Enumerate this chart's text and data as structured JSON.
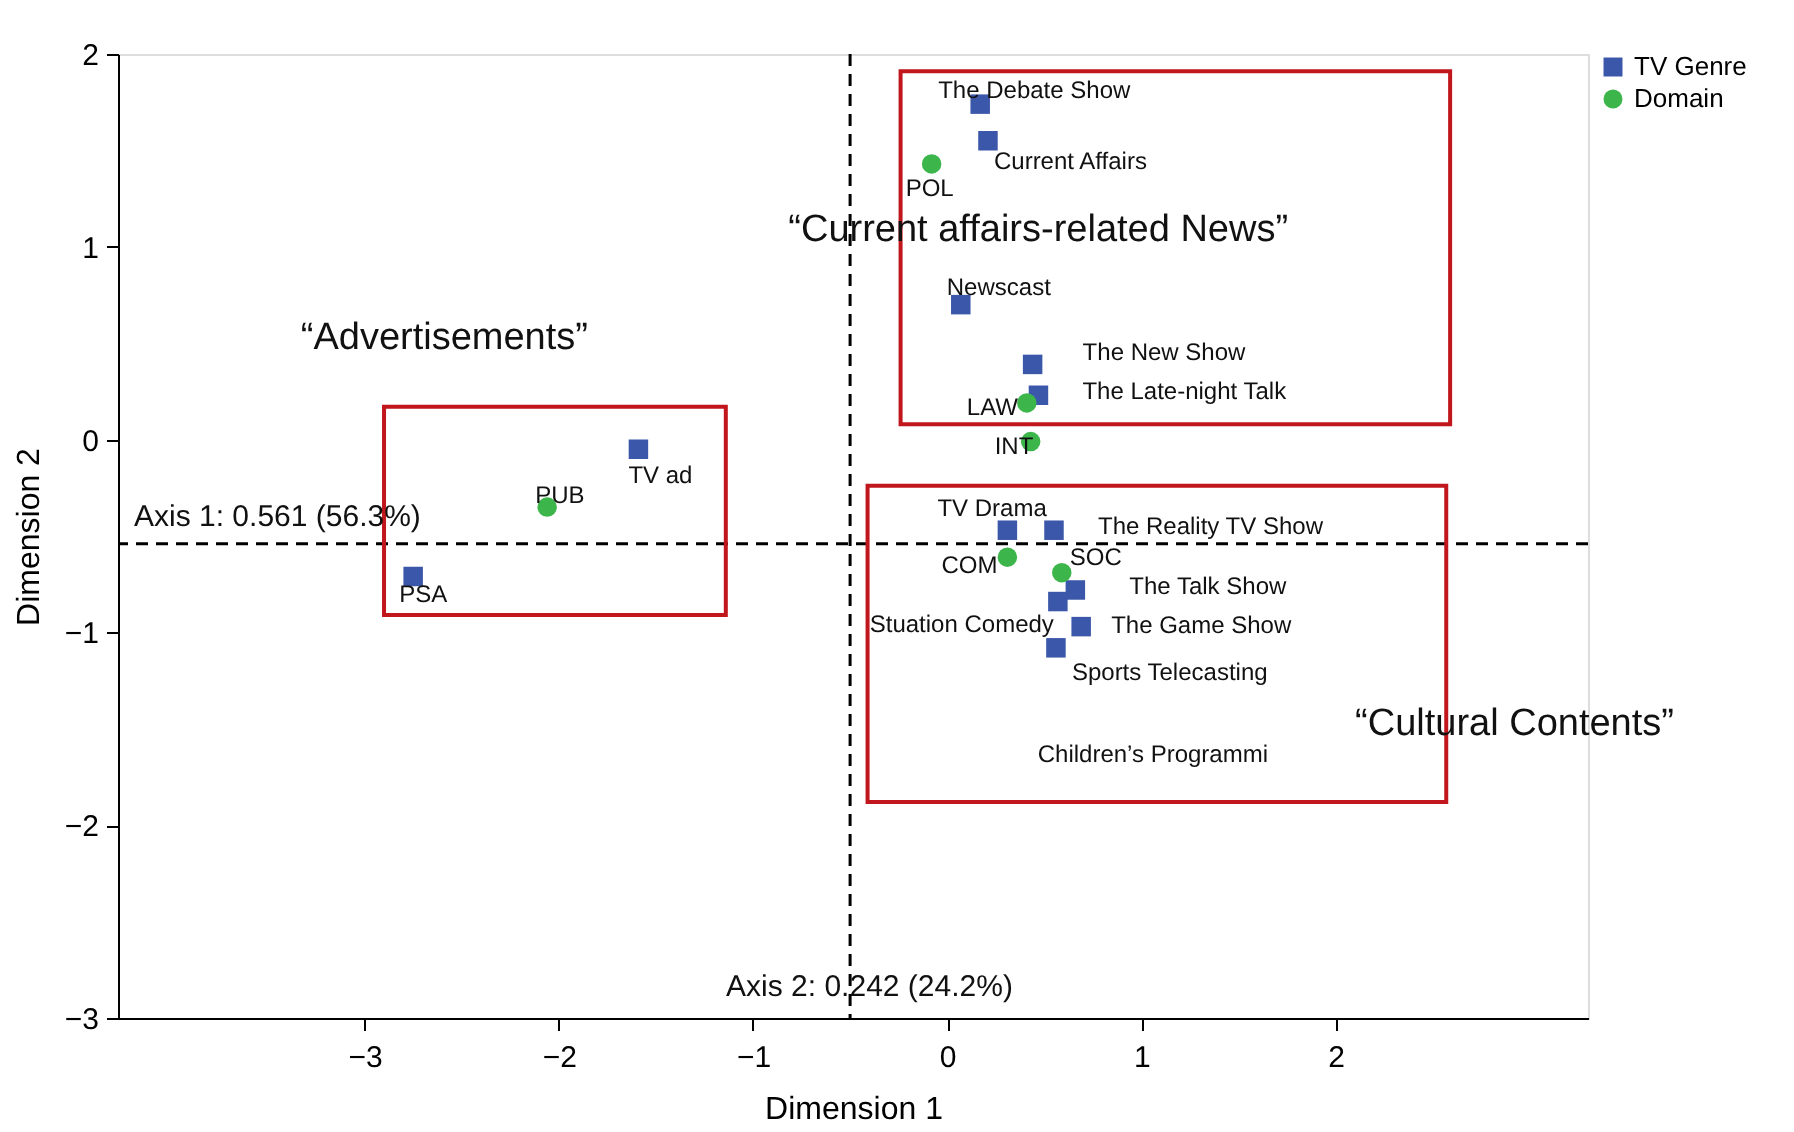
{
  "chart_data": {
    "type": "scatter",
    "xlabel": "Dimension 1",
    "ylabel": "Dimension 2",
    "xlim": [
      -4.27,
      3.3
    ],
    "ylim": [
      -3,
      2
    ],
    "xticks": [
      {
        "value": -3,
        "label": "−3"
      },
      {
        "value": -2,
        "label": "−2"
      },
      {
        "value": -1,
        "label": "−1"
      },
      0,
      1,
      2
    ],
    "yticks": [
      {
        "value": -3,
        "label": "−3"
      },
      {
        "value": -2,
        "label": "−2"
      },
      {
        "value": -1,
        "label": "−1"
      },
      0,
      1,
      2
    ],
    "grid": false,
    "legend": "top right",
    "series": [
      {
        "name": "TV Genre",
        "color": "#3b57a9",
        "marker": "square",
        "x": [
          0.17,
          0.21,
          0.07,
          0.44,
          0.47,
          -1.59,
          -2.75,
          0.31,
          0.55,
          0.66,
          0.57,
          0.69,
          0.56
        ],
        "values": [
          1.74,
          1.55,
          0.7,
          0.39,
          0.23,
          -0.05,
          -0.71,
          -0.47,
          -0.47,
          -0.78,
          -0.84,
          -0.97,
          -1.08
        ],
        "value_labels": [
          "The Debate Show",
          "Current Affairs",
          "Newscast",
          "The New Show",
          "The Late-night Talk",
          "TV ad",
          "PSA",
          "TV Drama",
          "The Reality TV Show",
          "The Talk Show",
          "Stuation Comedy",
          "The Game Show",
          "Sports Telecasting"
        ]
      },
      {
        "name": "Domain",
        "color": "#3cb54a",
        "marker": "circle",
        "x": [
          -0.08,
          0.41,
          0.43,
          -2.06,
          0.31,
          0.59
        ],
        "values": [
          1.43,
          0.19,
          -0.01,
          -0.35,
          -0.61,
          -0.69
        ],
        "value_labels": [
          "POL",
          "LAW",
          "INT",
          "PUB",
          "COM",
          "SOC"
        ]
      }
    ],
    "ref_lines": [
      {
        "axis": "y",
        "value": -0.54,
        "line_style": "dashed"
      },
      {
        "axis": "x",
        "value": -0.5,
        "line_style": "dashed"
      }
    ],
    "annotations": [
      "Axis 1: 0.561 (56.3%)",
      "Axis 2: 0.242 (24.2%)",
      "“Advertisements”",
      "“Current affairs-related News”",
      "“Cultural Contents”",
      "Children’s Programmi"
    ]
  }
}
